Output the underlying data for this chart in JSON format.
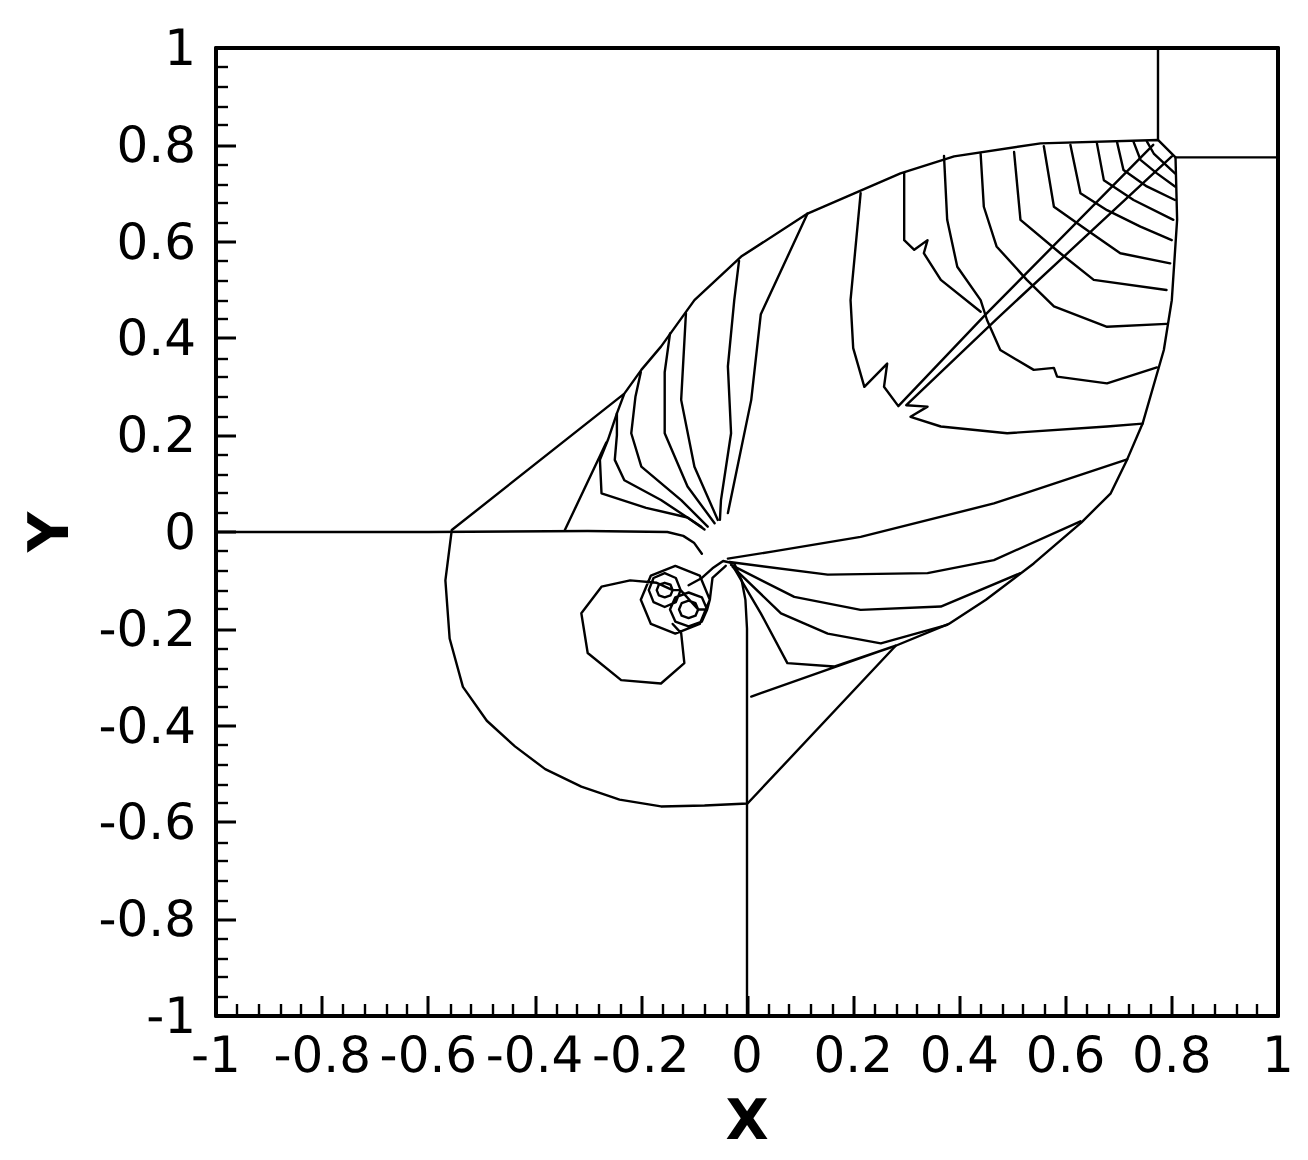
{
  "chart_data": {
    "type": "line",
    "xlabel": "X",
    "ylabel": "Y",
    "xlim": [
      -1,
      1
    ],
    "ylim": [
      -1,
      1
    ],
    "xticks": [
      -1,
      {
        "value": -0.96,
        "label": null
      },
      {
        "value": -0.92,
        "label": null
      },
      {
        "value": -0.88,
        "label": null
      },
      {
        "value": -0.84,
        "label": null
      },
      -0.8,
      {
        "value": -0.76,
        "label": null
      },
      {
        "value": -0.72,
        "label": null
      },
      {
        "value": -0.68,
        "label": null
      },
      {
        "value": -0.64,
        "label": null
      },
      -0.6,
      {
        "value": -0.56,
        "label": null
      },
      {
        "value": -0.52,
        "label": null
      },
      {
        "value": -0.48,
        "label": null
      },
      {
        "value": -0.44,
        "label": null
      },
      -0.4,
      {
        "value": -0.36,
        "label": null
      },
      {
        "value": -0.32,
        "label": null
      },
      {
        "value": -0.28,
        "label": null
      },
      {
        "value": -0.24,
        "label": null
      },
      -0.2,
      {
        "value": -0.16,
        "label": null
      },
      {
        "value": -0.12,
        "label": null
      },
      {
        "value": -0.08,
        "label": null
      },
      {
        "value": -0.04,
        "label": null
      },
      0,
      {
        "value": 0.04,
        "label": null
      },
      {
        "value": 0.08,
        "label": null
      },
      {
        "value": 0.12,
        "label": null
      },
      {
        "value": 0.16,
        "label": null
      },
      0.2,
      {
        "value": 0.24,
        "label": null
      },
      {
        "value": 0.28,
        "label": null
      },
      {
        "value": 0.32,
        "label": null
      },
      {
        "value": 0.36,
        "label": null
      },
      0.4,
      {
        "value": 0.44,
        "label": null
      },
      {
        "value": 0.48,
        "label": null
      },
      {
        "value": 0.52,
        "label": null
      },
      {
        "value": 0.56,
        "label": null
      },
      0.6,
      {
        "value": 0.64,
        "label": null
      },
      {
        "value": 0.68,
        "label": null
      },
      {
        "value": 0.72,
        "label": null
      },
      {
        "value": 0.76,
        "label": null
      },
      0.8,
      {
        "value": 0.84,
        "label": null
      },
      {
        "value": 0.88,
        "label": null
      },
      {
        "value": 0.92,
        "label": null
      },
      {
        "value": 0.96,
        "label": null
      },
      1
    ],
    "yticks": [
      -1,
      {
        "value": -0.96,
        "label": null
      },
      {
        "value": -0.92,
        "label": null
      },
      {
        "value": -0.88,
        "label": null
      },
      {
        "value": -0.84,
        "label": null
      },
      -0.8,
      {
        "value": -0.76,
        "label": null
      },
      {
        "value": -0.72,
        "label": null
      },
      {
        "value": -0.68,
        "label": null
      },
      {
        "value": -0.64,
        "label": null
      },
      -0.6,
      {
        "value": -0.56,
        "label": null
      },
      {
        "value": -0.52,
        "label": null
      },
      {
        "value": -0.48,
        "label": null
      },
      {
        "value": -0.44,
        "label": null
      },
      -0.4,
      {
        "value": -0.36,
        "label": null
      },
      {
        "value": -0.32,
        "label": null
      },
      {
        "value": -0.28,
        "label": null
      },
      {
        "value": -0.24,
        "label": null
      },
      -0.2,
      {
        "value": -0.16,
        "label": null
      },
      {
        "value": -0.12,
        "label": null
      },
      {
        "value": -0.08,
        "label": null
      },
      {
        "value": -0.04,
        "label": null
      },
      0,
      {
        "value": 0.04,
        "label": null
      },
      {
        "value": 0.08,
        "label": null
      },
      {
        "value": 0.12,
        "label": null
      },
      {
        "value": 0.16,
        "label": null
      },
      0.2,
      {
        "value": 0.24,
        "label": null
      },
      {
        "value": 0.28,
        "label": null
      },
      {
        "value": 0.32,
        "label": null
      },
      {
        "value": 0.36,
        "label": null
      },
      0.4,
      {
        "value": 0.44,
        "label": null
      },
      {
        "value": 0.48,
        "label": null
      },
      {
        "value": 0.52,
        "label": null
      },
      {
        "value": 0.56,
        "label": null
      },
      0.6,
      {
        "value": 0.64,
        "label": null
      },
      {
        "value": 0.68,
        "label": null
      },
      {
        "value": 0.72,
        "label": null
      },
      {
        "value": 0.76,
        "label": null
      },
      0.8,
      {
        "value": 0.84,
        "label": null
      },
      {
        "value": 0.88,
        "label": null
      },
      {
        "value": 0.92,
        "label": null
      },
      {
        "value": 0.96,
        "label": null
      },
      1
    ],
    "marker": "none",
    "line_style": "solid",
    "series": [
      {
        "color": "#000000",
        "x": [
          -1,
          -0.6,
          -0.3,
          -0.15,
          -0.12,
          -0.1,
          -0.085
        ],
        "values": [
          0,
          0,
          0.002,
          0,
          -0.008,
          -0.022,
          -0.045
        ]
      },
      {
        "color": "#000000",
        "x": [
          0,
          0,
          0,
          -0.003,
          -0.01,
          -0.024,
          -0.045,
          -0.065,
          -0.085,
          -0.11
        ],
        "values": [
          -1,
          -0.56,
          -0.2,
          -0.14,
          -0.1,
          -0.065,
          -0.06,
          -0.075,
          -0.095,
          -0.11
        ]
      },
      {
        "color": "#000000",
        "x": [
          0.774,
          0.774
        ],
        "values": [
          1,
          0.81
        ]
      },
      {
        "color": "#000000",
        "x": [
          0.807,
          1
        ],
        "values": [
          0.774,
          0.774
        ]
      },
      {
        "color": "#000000",
        "x": [
          -0.08,
          -0.112,
          -0.19,
          -0.274,
          -0.277,
          -0.262,
          -0.245,
          -0.231,
          -0.199,
          -0.162,
          -0.099,
          -0.011,
          0.114,
          0.289,
          0.39,
          0.553,
          0.774,
          0.807,
          0.81,
          0.8,
          0.785,
          0.745,
          0.716,
          0.685,
          0.63,
          0.54,
          0.45,
          0.38,
          0.28,
          0.001,
          -0.08,
          -0.162,
          -0.24,
          -0.312,
          -0.38,
          -0.437,
          -0.49,
          -0.535,
          -0.56,
          -0.568,
          -0.556,
          -0.231
        ],
        "values": [
          0.005,
          0.03,
          0.05,
          0.08,
          0.149,
          0.19,
          0.245,
          0.286,
          0.335,
          0.383,
          0.479,
          0.569,
          0.658,
          0.741,
          0.776,
          0.803,
          0.81,
          0.774,
          0.645,
          0.479,
          0.376,
          0.224,
          0.15,
          0.08,
          0.02,
          -0.065,
          -0.14,
          -0.19,
          -0.235,
          -0.561,
          -0.565,
          -0.567,
          -0.553,
          -0.526,
          -0.49,
          -0.443,
          -0.39,
          -0.32,
          -0.22,
          -0.1,
          0.004,
          0.286
        ]
      },
      {
        "color": "#000000",
        "x": [
          -0.343,
          -0.265
        ],
        "values": [
          0.004,
          0.185
        ]
      },
      {
        "color": "#000000",
        "x": [
          -0.024,
          0.026,
          0.076,
          0.164,
          0.28,
          0.008
        ],
        "values": [
          -0.075,
          -0.168,
          -0.271,
          -0.278,
          -0.235,
          -0.34
        ]
      },
      {
        "color": "#000000",
        "x": [
          -0.04,
          -0.065,
          -0.07,
          -0.089,
          -0.135,
          -0.181,
          -0.2,
          -0.181,
          -0.135,
          -0.089,
          -0.07,
          -0.075,
          -0.085,
          -0.11,
          -0.135,
          -0.145,
          -0.135,
          -0.11,
          -0.085,
          -0.075,
          -0.092,
          -0.097,
          -0.11,
          -0.123,
          -0.128,
          -0.123,
          -0.11,
          -0.097,
          -0.092,
          -0.125,
          -0.134,
          -0.155,
          -0.176,
          -0.185,
          -0.176,
          -0.155,
          -0.134,
          -0.125,
          -0.14,
          -0.144,
          -0.155,
          -0.166,
          -0.17,
          -0.166,
          -0.155,
          -0.144,
          -0.14,
          -0.17,
          -0.22,
          -0.274,
          -0.312,
          -0.3,
          -0.237,
          -0.162,
          -0.118,
          -0.124,
          -0.14
        ],
        "values": [
          -0.07,
          -0.095,
          -0.14,
          -0.19,
          -0.21,
          -0.19,
          -0.14,
          -0.09,
          -0.07,
          -0.09,
          -0.14,
          -0.16,
          -0.185,
          -0.195,
          -0.185,
          -0.16,
          -0.135,
          -0.125,
          -0.135,
          -0.16,
          -0.16,
          -0.173,
          -0.178,
          -0.173,
          -0.16,
          -0.147,
          -0.142,
          -0.147,
          -0.16,
          -0.12,
          -0.145,
          -0.155,
          -0.145,
          -0.12,
          -0.095,
          -0.085,
          -0.095,
          -0.12,
          -0.12,
          -0.131,
          -0.135,
          -0.131,
          -0.12,
          -0.109,
          -0.105,
          -0.109,
          -0.12,
          -0.105,
          -0.1,
          -0.113,
          -0.168,
          -0.25,
          -0.306,
          -0.313,
          -0.271,
          -0.209,
          -0.19
        ]
      },
      {
        "color": "#000000",
        "x": [
          -0.086,
          -0.162,
          -0.231,
          -0.249,
          -0.245,
          -0.245
        ],
        "values": [
          0.011,
          0.066,
          0.107,
          0.149,
          0.2,
          0.245
        ]
      },
      {
        "color": "#000000",
        "x": [
          -0.074,
          -0.124,
          -0.199,
          -0.218,
          -0.21,
          -0.2
        ],
        "values": [
          0.011,
          0.066,
          0.135,
          0.204,
          0.28,
          0.33
        ]
      },
      {
        "color": "#000000",
        "x": [
          -0.061,
          -0.112,
          -0.155,
          -0.155,
          -0.145
        ],
        "values": [
          0.018,
          0.094,
          0.204,
          0.33,
          0.41
        ]
      },
      {
        "color": "#000000",
        "x": [
          -0.055,
          -0.099,
          -0.124,
          -0.115
        ],
        "values": [
          0.025,
          0.135,
          0.273,
          0.452
        ]
      },
      {
        "color": "#000000",
        "x": [
          -0.051,
          -0.049,
          -0.03,
          -0.036,
          -0.024,
          -0.015
        ],
        "values": [
          0.025,
          0.066,
          0.204,
          0.342,
          0.479,
          0.56
        ]
      },
      {
        "color": "#000000",
        "x": [
          -0.036,
          0.008,
          0.026,
          0.114
        ],
        "values": [
          0.039,
          0.273,
          0.45,
          0.658
        ]
      },
      {
        "color": "#000000",
        "x": [
          0.214,
          0.195,
          0.2,
          0.221,
          0.264,
          0.258,
          0.285,
          0.45,
          0.765
        ],
        "values": [
          0.7,
          0.479,
          0.38,
          0.3,
          0.348,
          0.3,
          0.26,
          0.45,
          0.8
        ]
      },
      {
        "color": "#000000",
        "x": [
          0.8,
          0.47,
          0.3,
          0.34,
          0.308,
          0.365,
          0.49,
          0.678,
          0.745
        ],
        "values": [
          0.776,
          0.44,
          0.262,
          0.259,
          0.238,
          0.218,
          0.204,
          0.218,
          0.224
        ]
      },
      {
        "color": "#000000",
        "x": [
          0.296,
          0.296,
          0.315,
          0.34,
          0.333,
          0.365,
          0.44
        ],
        "values": [
          0.741,
          0.603,
          0.583,
          0.603,
          0.576,
          0.521,
          0.455
        ]
      },
      {
        "color": "#000000",
        "x": [
          0.371,
          0.377,
          0.396,
          0.44,
          0.452,
          0.477,
          0.54,
          0.578,
          0.584,
          0.678,
          0.772
        ],
        "values": [
          0.777,
          0.645,
          0.548,
          0.479,
          0.438,
          0.376,
          0.335,
          0.339,
          0.321,
          0.307,
          0.34
        ]
      },
      {
        "color": "#000000",
        "x": [
          0.44,
          0.446,
          0.47,
          0.527,
          0.578,
          0.678,
          0.79
        ],
        "values": [
          0.781,
          0.672,
          0.59,
          0.521,
          0.466,
          0.424,
          0.43
        ]
      },
      {
        "color": "#000000",
        "x": [
          0.503,
          0.515,
          0.59,
          0.653,
          0.79
        ],
        "values": [
          0.785,
          0.645,
          0.576,
          0.521,
          0.5
        ]
      },
      {
        "color": "#000000",
        "x": [
          0.559,
          0.578,
          0.64,
          0.703,
          0.797
        ],
        "values": [
          0.797,
          0.672,
          0.624,
          0.576,
          0.555
        ]
      },
      {
        "color": "#000000",
        "x": [
          0.609,
          0.628,
          0.678,
          0.741,
          0.8
        ],
        "values": [
          0.8,
          0.7,
          0.665,
          0.631,
          0.603
        ]
      },
      {
        "color": "#000000",
        "x": [
          0.659,
          0.672,
          0.728,
          0.803
        ],
        "values": [
          0.803,
          0.727,
          0.686,
          0.645
        ]
      },
      {
        "color": "#000000",
        "x": [
          0.697,
          0.709,
          0.753,
          0.806
        ],
        "values": [
          0.805,
          0.748,
          0.714,
          0.686
        ]
      },
      {
        "color": "#000000",
        "x": [
          0.728,
          0.741,
          0.772,
          0.806
        ],
        "values": [
          0.806,
          0.769,
          0.741,
          0.714
        ]
      },
      {
        "color": "#000000",
        "x": [
          0.753,
          0.766,
          0.806
        ],
        "values": [
          0.807,
          0.782,
          0.741
        ]
      },
      {
        "color": "#000000",
        "x": [
          -0.036,
          0.05,
          0.214,
          0.465,
          0.716
        ],
        "values": [
          -0.055,
          -0.04,
          -0.01,
          0.059,
          0.15
        ]
      },
      {
        "color": "#000000",
        "x": [
          -0.033,
          0.152,
          0.34,
          0.465,
          0.628
        ],
        "values": [
          -0.062,
          -0.088,
          -0.085,
          -0.058,
          0.022
        ]
      },
      {
        "color": "#000000",
        "x": [
          -0.03,
          0.089,
          0.214,
          0.365,
          0.515
        ],
        "values": [
          -0.068,
          -0.134,
          -0.161,
          -0.154,
          -0.085
        ]
      },
      {
        "color": "#000000",
        "x": [
          -0.027,
          0.064,
          0.152,
          0.252,
          0.377
        ],
        "values": [
          -0.072,
          -0.168,
          -0.21,
          -0.23,
          -0.192
        ]
      }
    ]
  }
}
